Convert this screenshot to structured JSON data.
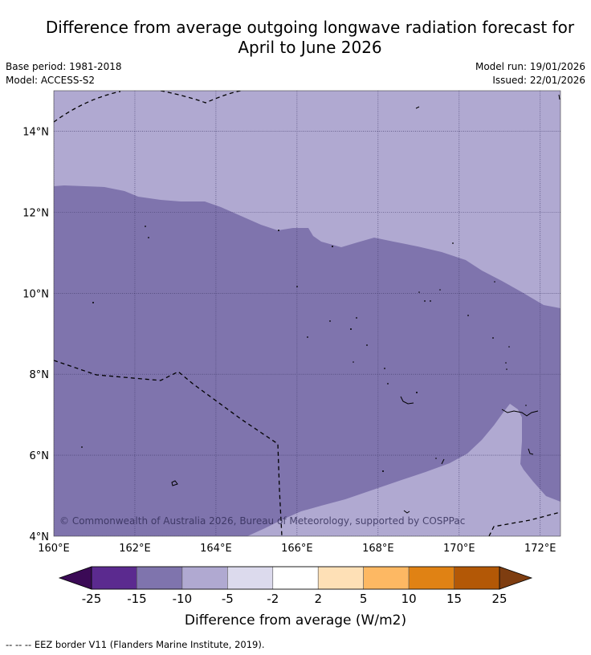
{
  "title": {
    "line1": "Difference from average outgoing longwave radiation forecast for",
    "line2": "April to June 2026"
  },
  "meta": {
    "base_period": "Base period: 1981-2018",
    "model": "Model: ACCESS-S2",
    "model_run": "Model run: 19/01/2026",
    "issued": "Issued: 22/01/2026"
  },
  "map": {
    "region": {
      "lon_min": 160,
      "lon_max": 172.5,
      "lat_min": 4,
      "lat_max": 15
    },
    "lat_ticks": [
      {
        "lat": 14,
        "label": "14°N"
      },
      {
        "lat": 12,
        "label": "12°N"
      },
      {
        "lat": 10,
        "label": "10°N"
      },
      {
        "lat": 8,
        "label": "8°N"
      },
      {
        "lat": 6,
        "label": "6°N"
      },
      {
        "lat": 4,
        "label": "4°N"
      }
    ],
    "lon_ticks": [
      {
        "lon": 160,
        "label": "160°E"
      },
      {
        "lon": 162,
        "label": "162°E"
      },
      {
        "lon": 164,
        "label": "164°E"
      },
      {
        "lon": 166,
        "label": "166°E"
      },
      {
        "lon": 168,
        "label": "168°E"
      },
      {
        "lon": 170,
        "label": "170°E"
      },
      {
        "lon": 172,
        "label": "172°E"
      }
    ],
    "copyright": "© Commonwealth of Australia 2026, Bureau of Meteorology, supported by COSPPac",
    "fields": {
      "light_value_class": "-10 to -5",
      "dark_value_class": "-15 to -10",
      "light_color": "#b0a9d1",
      "dark_color": "#7f74ad"
    }
  },
  "colorbar": {
    "label": "Difference from average (W/m2)",
    "ticks": [
      "-25",
      "-15",
      "-10",
      "-5",
      "-2",
      "2",
      "5",
      "10",
      "15",
      "25"
    ],
    "low_extend_color": "#3b0a56",
    "high_extend_color": "#7e3d10",
    "colors": [
      "#5b2a8f",
      "#7f74ad",
      "#b0a9d1",
      "#dcdaed",
      "#ffffff",
      "#fee0b6",
      "#fdb863",
      "#e08214",
      "#b35806"
    ]
  },
  "footnote": "--  --  -- EEZ border V11 (Flanders Marine Institute, 2019)."
}
